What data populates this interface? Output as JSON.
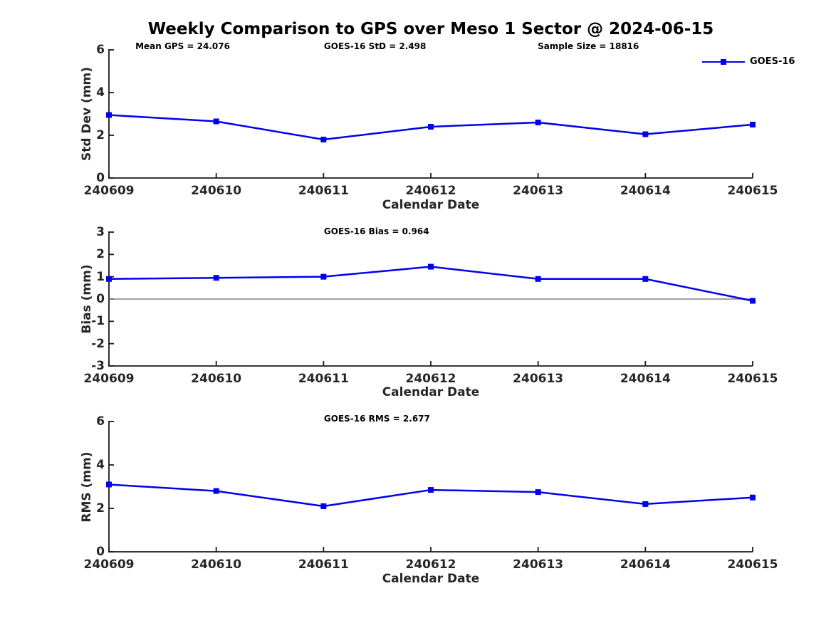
{
  "figure": {
    "title": "Weekly Comparison to GPS over Meso 1 Sector @ 2024-06-15",
    "legend": {
      "label": "GOES-16"
    },
    "colors": {
      "line": "#0000EE",
      "axis": "#1a1a1a",
      "tick_text": "#262626",
      "zero_line": "#808080",
      "background": "#ffffff"
    }
  },
  "chart_data": [
    {
      "type": "line",
      "categories": [
        "240609",
        "240610",
        "240611",
        "240612",
        "240613",
        "240614",
        "240615"
      ],
      "series": [
        {
          "name": "GOES-16",
          "color": "#0000EE",
          "marker": "square",
          "values": [
            2.95,
            2.65,
            1.8,
            2.4,
            2.6,
            2.05,
            2.5
          ]
        }
      ],
      "annotations": [
        "Mean GPS = 24.076",
        "GOES-16 StD = 2.498",
        "Sample Size = 18816"
      ],
      "xlabel": "Calendar Date",
      "ylabel": "Std Dev (mm)",
      "ylim": [
        0,
        6
      ],
      "yticks": [
        0,
        2,
        4,
        6
      ],
      "grid": false,
      "zero_line": false,
      "legend_position": "top-right"
    },
    {
      "type": "line",
      "categories": [
        "240609",
        "240610",
        "240611",
        "240612",
        "240613",
        "240614",
        "240615"
      ],
      "series": [
        {
          "name": "GOES-16",
          "color": "#0000EE",
          "marker": "square",
          "values": [
            0.9,
            0.95,
            1.0,
            1.45,
            0.9,
            0.9,
            -0.08
          ]
        }
      ],
      "annotations": [
        "GOES-16 Bias  = 0.964"
      ],
      "xlabel": "Calendar Date",
      "ylabel": "Bias (mm)",
      "ylim": [
        -3,
        3
      ],
      "yticks": [
        -3,
        -2,
        -1,
        0,
        1,
        2,
        3
      ],
      "grid": false,
      "zero_line": true,
      "legend_position": "none"
    },
    {
      "type": "line",
      "categories": [
        "240609",
        "240610",
        "240611",
        "240612",
        "240613",
        "240614",
        "240615"
      ],
      "series": [
        {
          "name": "GOES-16",
          "color": "#0000EE",
          "marker": "square",
          "values": [
            3.1,
            2.8,
            2.1,
            2.85,
            2.75,
            2.2,
            2.5
          ]
        }
      ],
      "annotations": [
        "GOES-16 RMS = 2.677"
      ],
      "xlabel": "Calendar Date",
      "ylabel": "RMS (mm)",
      "ylim": [
        0,
        6
      ],
      "yticks": [
        0,
        2,
        4,
        6
      ],
      "grid": false,
      "zero_line": false,
      "legend_position": "none"
    }
  ]
}
